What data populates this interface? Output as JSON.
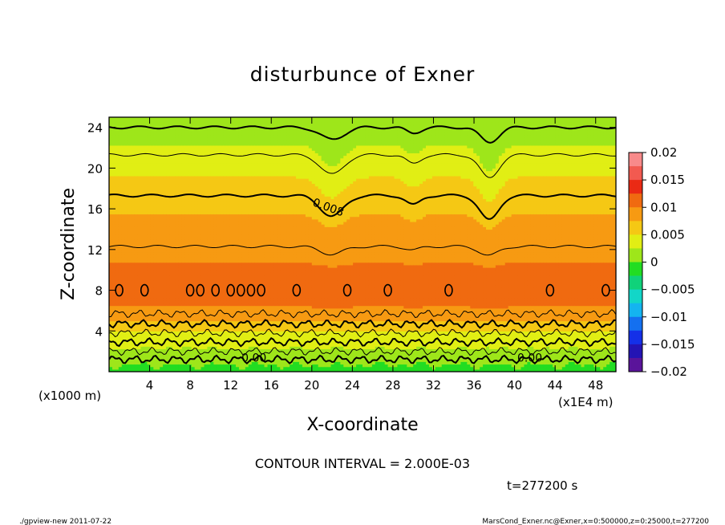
{
  "chart_data": {
    "type": "contour",
    "title": "disturbunce of Exner",
    "xlabel": "X-coordinate",
    "ylabel": "Z-coordinate",
    "x_unit_label": "(x1E4 m)",
    "y_unit_label": "(x1000 m)",
    "xlim": [
      0,
      50
    ],
    "ylim": [
      0,
      25
    ],
    "xticks": [
      4,
      8,
      12,
      16,
      20,
      24,
      28,
      32,
      36,
      40,
      44,
      48
    ],
    "yticks": [
      4,
      8,
      12,
      16,
      20,
      24
    ],
    "colorbar": {
      "range": [
        -0.02,
        0.02
      ],
      "tick_values": [
        0.02,
        0.015,
        0.01,
        0.005,
        0,
        -0.005,
        -0.01,
        -0.015,
        -0.02
      ],
      "tick_labels": [
        "0.02",
        "0.015",
        "0.01",
        "0.005",
        "0",
        "−0.005",
        "−0.01",
        "−0.015",
        "−0.02"
      ],
      "bands": [
        {
          "lo": 0.0175,
          "hi": 0.02,
          "color": "#f88a8a"
        },
        {
          "lo": 0.015,
          "hi": 0.0175,
          "color": "#f25a50"
        },
        {
          "lo": 0.0125,
          "hi": 0.015,
          "color": "#ea2a14"
        },
        {
          "lo": 0.01,
          "hi": 0.0125,
          "color": "#f06a10"
        },
        {
          "lo": 0.0075,
          "hi": 0.01,
          "color": "#f79a12"
        },
        {
          "lo": 0.005,
          "hi": 0.0075,
          "color": "#f5c814"
        },
        {
          "lo": 0.0025,
          "hi": 0.005,
          "color": "#e1ee14"
        },
        {
          "lo": 0,
          "hi": 0.0025,
          "color": "#9ee61a"
        },
        {
          "lo": -0.0025,
          "hi": 0,
          "color": "#22dd22"
        },
        {
          "lo": -0.005,
          "hi": -0.0025,
          "color": "#10d27a"
        },
        {
          "lo": -0.0075,
          "hi": -0.005,
          "color": "#12d6c8"
        },
        {
          "lo": -0.01,
          "hi": -0.0075,
          "color": "#14b4f0"
        },
        {
          "lo": -0.0125,
          "hi": -0.01,
          "color": "#1470f0"
        },
        {
          "lo": -0.015,
          "hi": -0.0125,
          "color": "#1430e8"
        },
        {
          "lo": -0.0175,
          "hi": -0.015,
          "color": "#2414b4"
        },
        {
          "lo": -0.02,
          "hi": -0.0175,
          "color": "#5a149a"
        }
      ]
    },
    "value_profile_by_height": {
      "z": [
        0,
        1,
        2,
        3,
        4,
        5,
        6,
        7,
        8,
        9,
        10,
        11,
        12,
        13,
        14,
        15,
        16,
        17,
        18,
        19,
        20,
        21,
        22,
        23,
        24,
        25
      ],
      "value": [
        -0.001,
        0.0005,
        0.002,
        0.0035,
        0.005,
        0.0075,
        0.0095,
        0.0108,
        0.0112,
        0.011,
        0.0105,
        0.0098,
        0.009,
        0.0085,
        0.0082,
        0.0078,
        0.0072,
        0.0065,
        0.0058,
        0.0051,
        0.0044,
        0.0037,
        0.0028,
        0.0018,
        0.0008,
        0.0002
      ]
    },
    "dips": [
      {
        "x": 22,
        "width": 1.6,
        "depth": 2.2,
        "label": "trough near x=22"
      },
      {
        "x": 37.5,
        "width": 1.3,
        "depth": 2.6,
        "label": "trough near x=37.5"
      },
      {
        "x": 30,
        "width": 1.0,
        "depth": 1.0,
        "label": "small trough near x=30"
      }
    ],
    "contour_lines": [
      {
        "level": 0.0,
        "z": 1.2,
        "bold": true
      },
      {
        "level": 0.002,
        "z": 2.0,
        "bold": false
      },
      {
        "level": 0.004,
        "z": 2.9,
        "bold": true
      },
      {
        "level": 0.006,
        "z": 3.8,
        "bold": false
      },
      {
        "level": 0.008,
        "z": 4.7,
        "bold": true
      },
      {
        "level": 0.01,
        "z": 5.7,
        "bold": false
      },
      {
        "level": 0.01,
        "z": 12.3,
        "bold": false
      },
      {
        "level": 0.008,
        "z": 17.3,
        "bold": true
      },
      {
        "level": 0.006,
        "z": 21.3,
        "bold": false
      },
      {
        "level": 0.004,
        "z": 24.0,
        "bold": true
      }
    ],
    "cells_z8": [
      1,
      3.5,
      8,
      9,
      10.5,
      12,
      13,
      14,
      15,
      18.5,
      23.5,
      27.5,
      33.5,
      43.5,
      49
    ],
    "contour_labels": [
      {
        "text": "0.00",
        "x": 14.3,
        "z": 1.0
      },
      {
        "text": "0.00",
        "x": 41.5,
        "z": 1.0
      },
      {
        "text": "0.008",
        "x": 21.5,
        "z": 15.8
      }
    ],
    "annotation": "CONTOUR INTERVAL = 2.000E-03",
    "time_label": "t=277200 s"
  },
  "footer": {
    "left": "./gpview-new   2011-07-22",
    "right": "MarsCond_Exner.nc@Exner,x=0:500000,z=0:25000,t=277200"
  }
}
